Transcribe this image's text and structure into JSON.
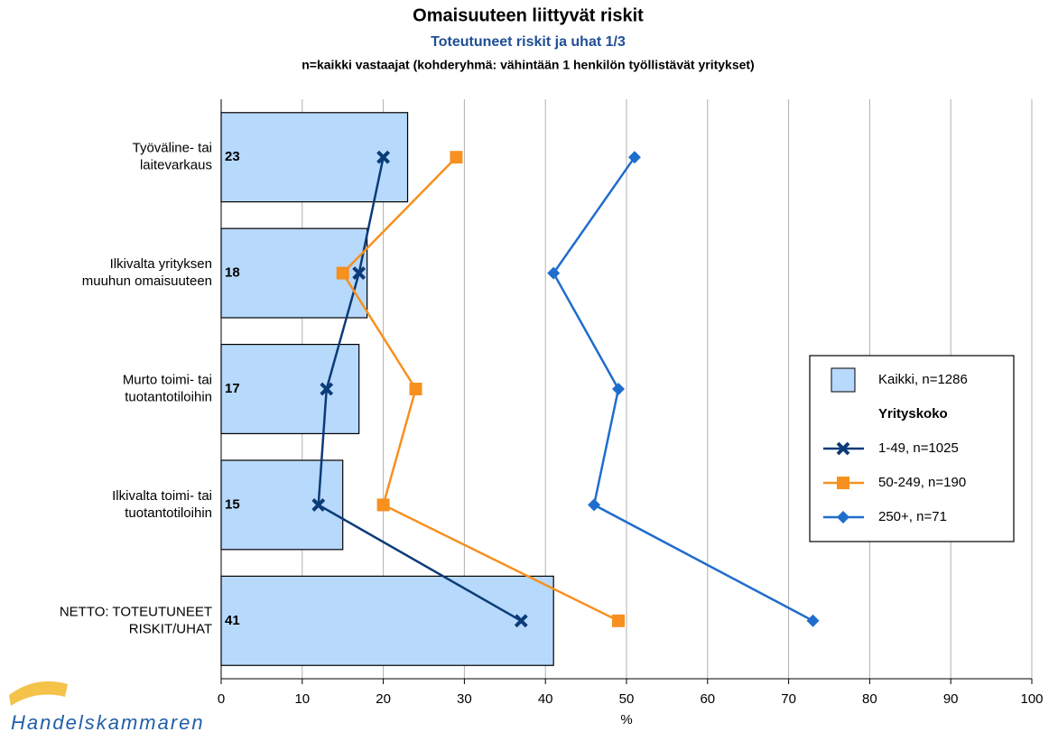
{
  "chart_data": {
    "type": "bar",
    "orientation": "horizontal",
    "title": "Omaisuuteen liittyvät riskit",
    "subtitle": "Toteutuneet riskit ja uhat 1/3",
    "note": "n=kaikki vastaajat (kohderyhmä: vähintään 1 henkilön työllistävät yritykset)",
    "x_label": "%",
    "logo": "Handelskammaren",
    "categories": [
      "Työväline- tai\nlaitevarkaus",
      "Ilkivalta yrityksen\nmuuhun omaisuuteen",
      "Murto toimi- tai\ntuotantotiloihin",
      "Ilkivalta toimi- tai\ntuotantotiloihin",
      "NETTO: TOTEUTUNEET\nRISKIT/UHAT"
    ],
    "series": [
      {
        "name": "Kaikki, n=1286",
        "kind": "bar",
        "color": "#b7d9fb",
        "values": [
          23,
          18,
          17,
          15,
          41
        ]
      },
      {
        "name": "1-49, n=1025",
        "kind": "line",
        "marker": "x",
        "color": "#0b3b78",
        "values": [
          20,
          17,
          13,
          12,
          37
        ]
      },
      {
        "name": "50-249, n=190",
        "kind": "line",
        "marker": "square",
        "color": "#f7901e",
        "values": [
          29,
          15,
          24,
          20,
          49
        ]
      },
      {
        "name": "250+, n=71",
        "kind": "line",
        "marker": "diamond",
        "color": "#1f6dcc",
        "values": [
          51,
          41,
          49,
          46,
          73
        ]
      }
    ],
    "legend_title": "Yrityskoko",
    "xlim": [
      0,
      100
    ],
    "xticks": [
      0,
      10,
      20,
      30,
      40,
      50,
      60,
      70,
      80,
      90,
      100
    ],
    "grid": true,
    "legend_position": "right"
  }
}
